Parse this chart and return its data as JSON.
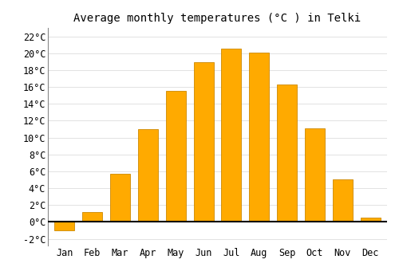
{
  "title": "Average monthly temperatures (°C ) in Telki",
  "months": [
    "Jan",
    "Feb",
    "Mar",
    "Apr",
    "May",
    "Jun",
    "Jul",
    "Aug",
    "Sep",
    "Oct",
    "Nov",
    "Dec"
  ],
  "values": [
    -1.0,
    1.2,
    5.7,
    11.0,
    15.5,
    18.9,
    20.5,
    20.1,
    16.3,
    11.1,
    5.0,
    0.5
  ],
  "bar_color": "#FFAA00",
  "bar_edge_color": "#CC8800",
  "background_color": "#FFFFFF",
  "grid_color": "#DDDDDD",
  "ylim": [
    -2.8,
    23.0
  ],
  "yticks": [
    -2,
    0,
    2,
    4,
    6,
    8,
    10,
    12,
    14,
    16,
    18,
    20,
    22
  ],
  "title_fontsize": 10,
  "tick_fontsize": 8.5,
  "font_family": "monospace",
  "bar_width": 0.72
}
